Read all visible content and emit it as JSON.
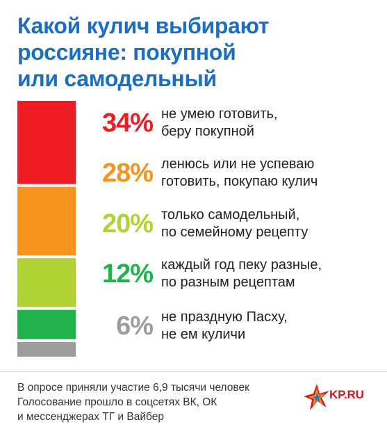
{
  "title_lines": [
    "Какой кулич выбирают",
    "россияне: покупной",
    "или самодельный"
  ],
  "chart_data": {
    "type": "bar",
    "orientation": "stacked-vertical",
    "categories": [
      "не умею готовить, беру покупной",
      "ленюсь или не успеваю готовить, покупаю кулич",
      "только самодельный, по семейному рецепту",
      "каждый год пеку разные, по разным рецептам",
      "не праздную Пасху, не ем куличи"
    ],
    "values": [
      34,
      28,
      20,
      12,
      6
    ],
    "unit": "%",
    "colors": [
      "#ee1d24",
      "#f7941d",
      "#b1d235",
      "#22b24c",
      "#9d9d9d"
    ],
    "legend": [
      {
        "pct": "34%",
        "line1": "не умею готовить,",
        "line2": "беру покупной",
        "color": "#ee1d24"
      },
      {
        "pct": "28%",
        "line1": "ленюсь или не успеваю",
        "line2": "готовить, покупаю кулич",
        "color": "#f7941d"
      },
      {
        "pct": "20%",
        "line1": "только самодельный,",
        "line2": "по семейному рецепту",
        "color": "#b1d235"
      },
      {
        "pct": "12%",
        "line1": "каждый год пеку разные,",
        "line2": "по разным рецептам",
        "color": "#22b24c"
      },
      {
        "pct": "6%",
        "line1": "не праздную Пасху,",
        "line2": "не ем куличи",
        "color": "#9d9d9d"
      }
    ]
  },
  "footer_lines": [
    "В опросе приняли участие 6,9 тысячи человек",
    "Голосование прошло в соцсетях ВК, ОК",
    "и мессенджерах ТГ и Вайбер"
  ],
  "logo_text": "KP.RU"
}
